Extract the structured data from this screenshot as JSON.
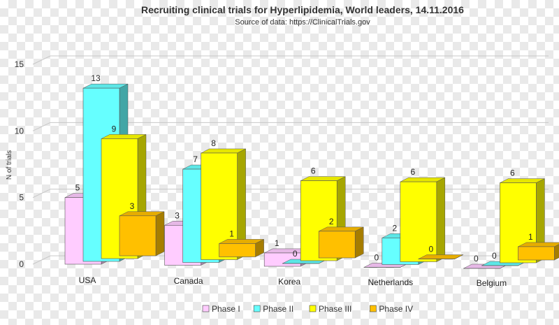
{
  "chart_data": {
    "type": "bar",
    "title": "Recruiting clinical trials for Hyperlipidemia, World leaders, 14.11.2016",
    "subtitle": "Source of data: https://ClinicalTrials.gov",
    "ylabel": "N of trials",
    "xlabel": "",
    "ylim": [
      0,
      15
    ],
    "yticks": [
      0,
      5,
      10,
      15
    ],
    "grid": true,
    "legend_position": "bottom",
    "categories": [
      "USA",
      "Canada",
      "Korea",
      "Netherlands",
      "Belgium"
    ],
    "series": [
      {
        "name": "Phase I",
        "color": "#ffccff",
        "values": [
          5,
          3,
          1,
          0,
          0
        ]
      },
      {
        "name": "Phase II",
        "color": "#66ffff",
        "values": [
          13,
          7,
          0,
          2,
          0
        ]
      },
      {
        "name": "Phase III",
        "color": "#ffff00",
        "values": [
          9,
          8,
          6,
          6,
          6
        ]
      },
      {
        "name": "Phase IV",
        "color": "#ffc000",
        "values": [
          3,
          1,
          2,
          0,
          1
        ]
      }
    ]
  }
}
